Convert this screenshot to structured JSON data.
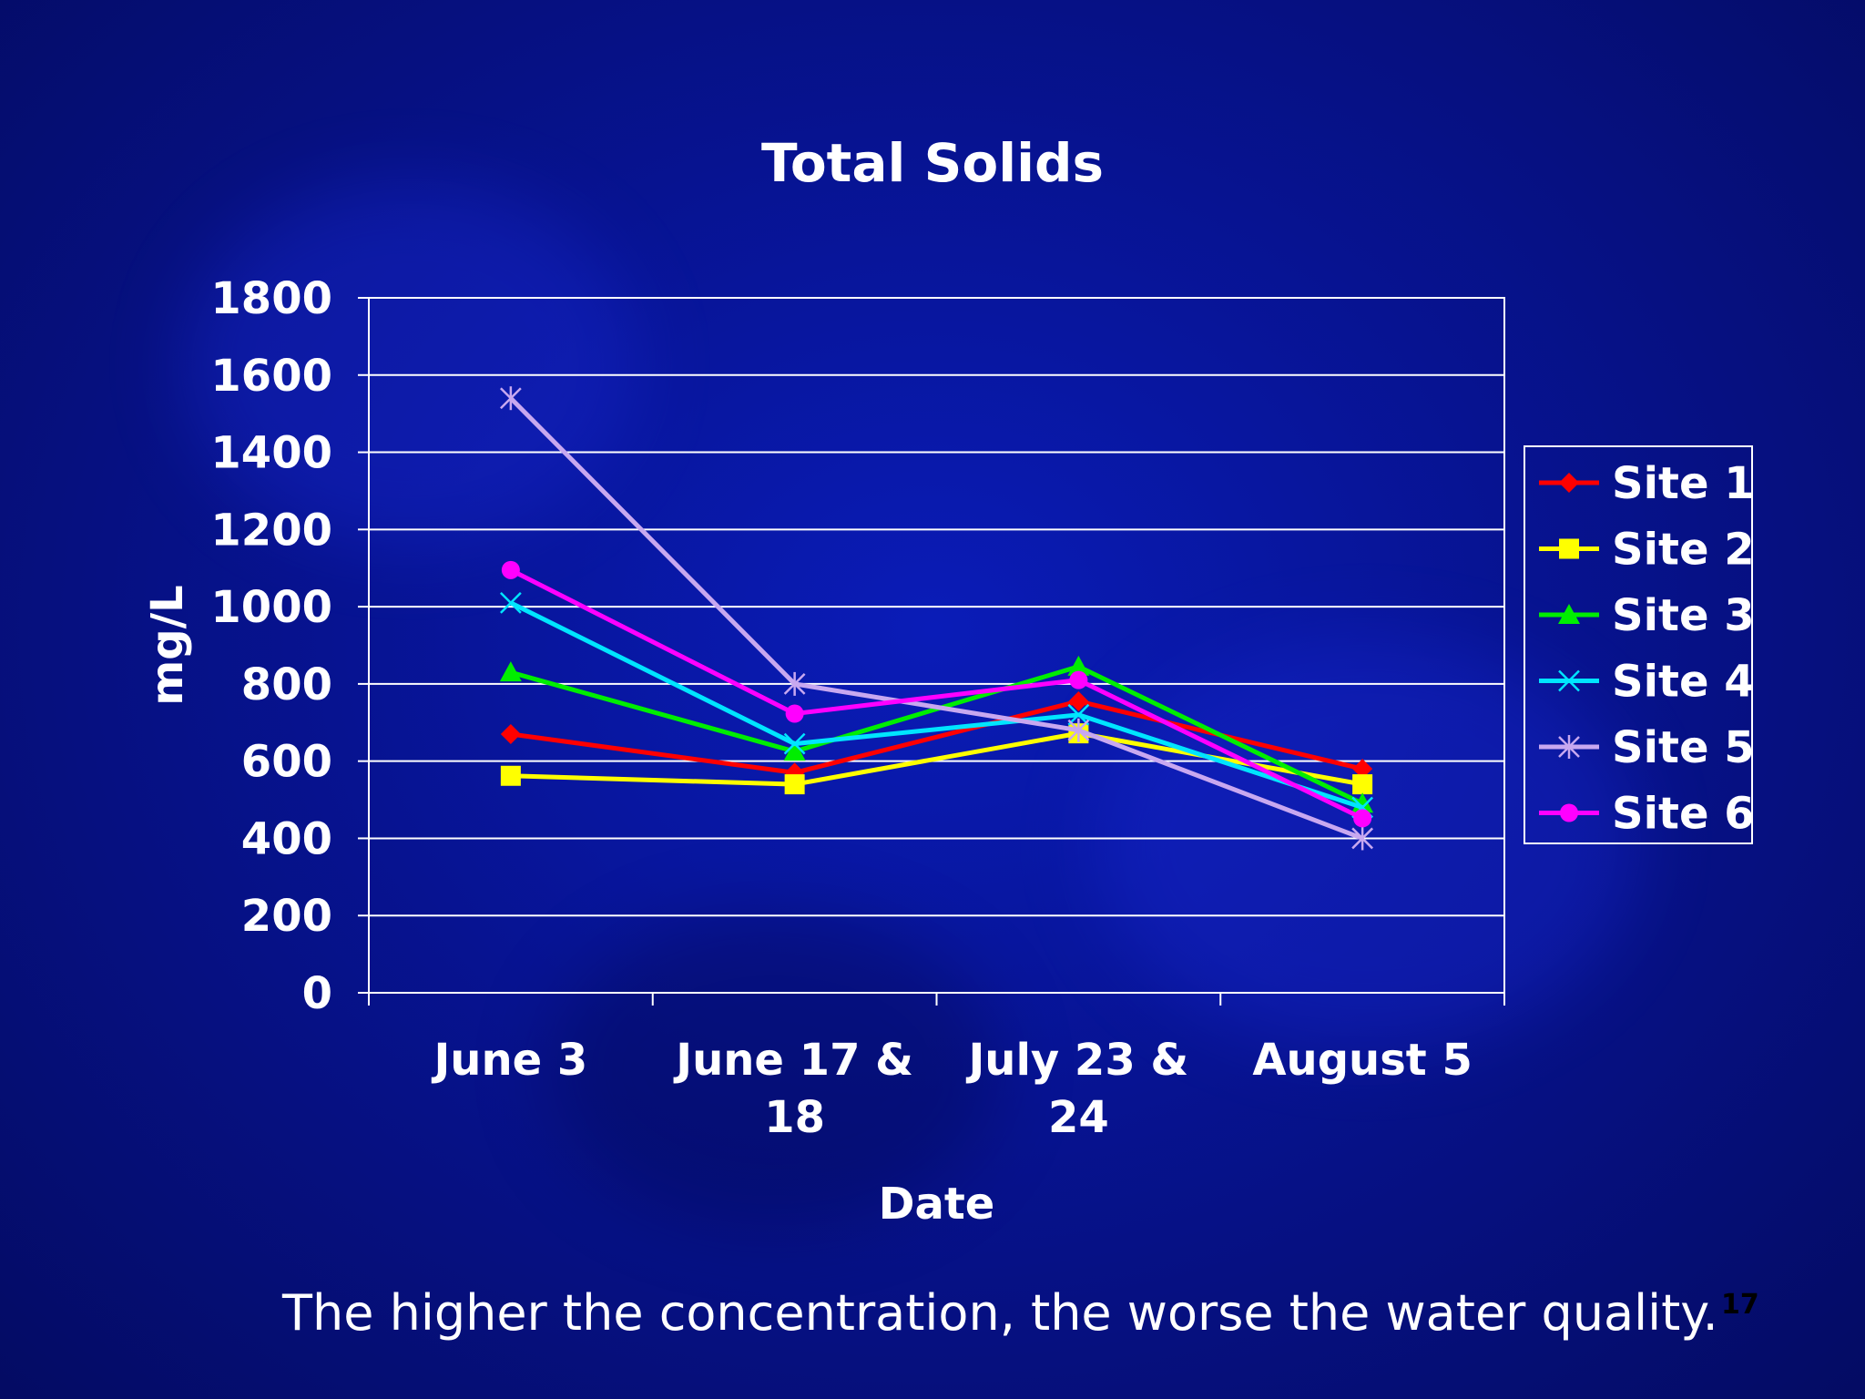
{
  "slide": {
    "footer": "The higher the concentration, the worse the water quality.",
    "page_number": "17"
  },
  "chart_data": {
    "type": "line",
    "title": "Total Solids",
    "xlabel": "Date",
    "ylabel": "mg/L",
    "categories": [
      [
        "June 3"
      ],
      [
        "June 17 &",
        "18"
      ],
      [
        "July 23 &",
        "24"
      ],
      [
        "August 5"
      ]
    ],
    "ylim": [
      0,
      1800
    ],
    "yticks": [
      0,
      200,
      400,
      600,
      800,
      1000,
      1200,
      1400,
      1600,
      1800
    ],
    "grid": true,
    "legend_position": "right",
    "series": [
      {
        "name": "Site 1",
        "color": "#ff0000",
        "marker": "diamond",
        "values": [
          670,
          570,
          755,
          580
        ]
      },
      {
        "name": "Site 2",
        "color": "#ffff00",
        "marker": "square",
        "values": [
          562,
          540,
          672,
          540
        ]
      },
      {
        "name": "Site 3",
        "color": "#00ee00",
        "marker": "triangle",
        "values": [
          830,
          625,
          845,
          490
        ]
      },
      {
        "name": "Site 4",
        "color": "#00e5ff",
        "marker": "x",
        "values": [
          1010,
          645,
          720,
          480
        ]
      },
      {
        "name": "Site 5",
        "color": "#c8a8f0",
        "marker": "asterisk",
        "values": [
          1540,
          800,
          680,
          400
        ]
      },
      {
        "name": "Site 6",
        "color": "#ff00ff",
        "marker": "circle",
        "values": [
          1095,
          723,
          810,
          452
        ]
      }
    ]
  }
}
